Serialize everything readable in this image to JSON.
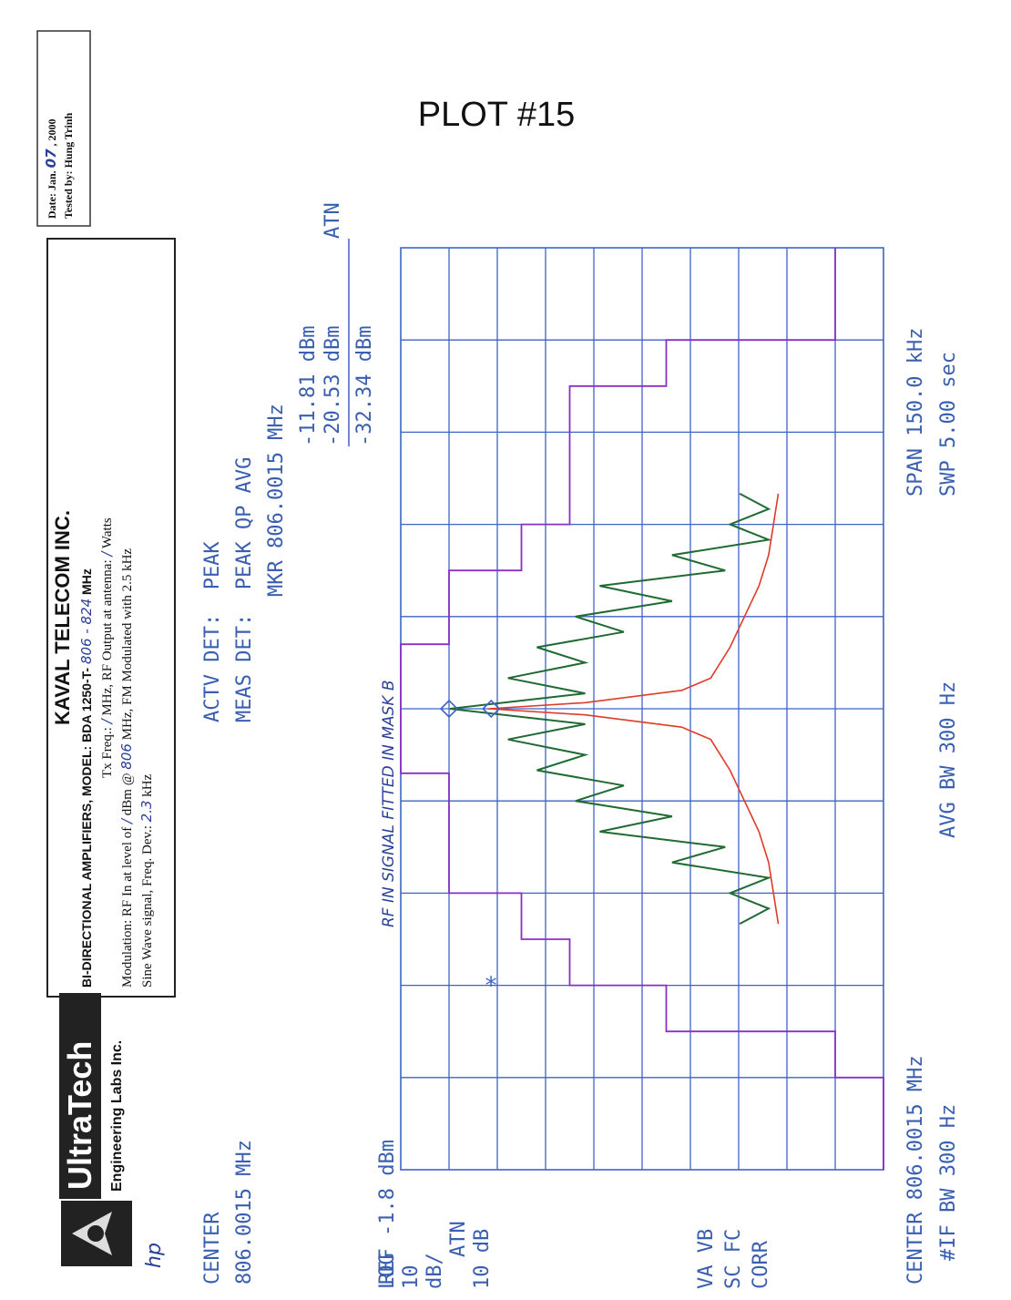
{
  "plot_title": "PLOT #15",
  "test_info": {
    "date_label": "Date: Jan.",
    "date_day": "07",
    "date_year": ", 2000",
    "tested_by": "Tested by: Hung Trinh"
  },
  "lab": {
    "name": "UltraTech",
    "subtitle": "Engineering Labs Inc.",
    "logo_icon": "ultratech-logo-icon"
  },
  "header": {
    "company": "KAVAL TELECOM INC.",
    "model_prefix": "BI-DIRECTIONAL AMPLIFIERS, MODEL: BDA 1250-T-",
    "model_freq": "806 - 824",
    "model_unit": "MHz",
    "tx_prefix": "Tx Freq.:",
    "tx_value": "/",
    "tx_mid": "MHz, RF Output at antenna:",
    "tx_watts": "/",
    "tx_unit": "Watts",
    "mod_prefix": "Modulation: RF In at level of",
    "mod_level": "/",
    "mod_mid": "dBm @",
    "mod_freq": "806",
    "mod_suffix": "MHz, FM Modulated with 2.5 kHz",
    "sine_prefix": "Sine Wave signal, Freq. Dev.:",
    "sine_dev": "2.3",
    "sine_unit": "kHz"
  },
  "annotation": "RF IN SIGNAL FITTED IN MASK B",
  "instrument_mark": "hp",
  "readout": {
    "center_label": "CENTER",
    "center_value": "806.0015 MHz",
    "actv_det": "ACTV DET:  PEAK",
    "meas_det": "MEAS DET:  PEAK QP AVG",
    "mkr": "MKR 806.0015 MHz",
    "val1": "-11.81 dBm",
    "val2": "-20.53 dBm",
    "atn": "ATN",
    "val3": "-32.34 dBm",
    "ref": "REF -1.8 dBm",
    "log": "LOG",
    "db_per_div_1": "10",
    "db_per_div_2": "dB/",
    "atn_label": "ATN",
    "atn_value": "10 dB",
    "va_vb": "VA VB",
    "sc_fc": "SC FC",
    "corr": "CORR",
    "footer_center": "CENTER 806.0015 MHz",
    "footer_ifbw": "#IF BW 300 Hz",
    "footer_avgbw": "AVG BW 300 Hz",
    "footer_span": "SPAN 150.0 kHz",
    "footer_swp": "SWP 5.00 sec"
  },
  "colors": {
    "grid": "#3e63c7",
    "mask": "#8a2fc6",
    "trace_peak": "#1f6b33",
    "trace_avg": "#e03a2a",
    "marker": "#3e63c7"
  },
  "chart_data": {
    "type": "line",
    "title": "PLOT #15",
    "x_unit": "kHz offset from center 806.0015 MHz",
    "xlim": [
      -75,
      75
    ],
    "ylim": [
      -101.8,
      -1.8
    ],
    "ylabel": "dBm",
    "grid": true,
    "series": [
      {
        "name": "mask",
        "x": [
          -75,
          -60,
          -60,
          -52.5,
          -52.5,
          -45,
          -45,
          -37.5,
          -37.5,
          -30,
          -30,
          -10.5,
          -10.5,
          10.5,
          10.5,
          22.5,
          22.5,
          30,
          30,
          52.5,
          52.5,
          60,
          60,
          75
        ],
        "values": [
          -101.8,
          -101.8,
          -91.8,
          -91.8,
          -56.8,
          -56.8,
          -36.8,
          -36.8,
          -26.8,
          -26.8,
          -11.8,
          -11.8,
          -1.8,
          -1.8,
          -11.8,
          -11.8,
          -26.8,
          -26.8,
          -36.8,
          -36.8,
          -56.8,
          -56.8,
          -91.8,
          -91.8
        ]
      },
      {
        "name": "peak trace",
        "x": [
          -35,
          -32.5,
          -30,
          -27.5,
          -25,
          -22.5,
          -20,
          -17.5,
          -15,
          -12.5,
          -10,
          -7.5,
          -5,
          -2.5,
          0,
          2.5,
          5,
          7.5,
          10,
          12.5,
          15,
          17.5,
          20,
          22.5,
          25,
          27.5,
          30,
          32.5,
          35
        ],
        "values": [
          -72,
          -78,
          -70,
          -78,
          -58,
          -69,
          -43,
          -58,
          -38,
          -48,
          -30,
          -40,
          -24,
          -40,
          -12,
          -40,
          -24,
          -40,
          -30,
          -48,
          -38,
          -58,
          -43,
          -69,
          -58,
          -78,
          -70,
          -78,
          -72
        ]
      },
      {
        "name": "average trace",
        "x": [
          -35,
          -30,
          -25,
          -20,
          -15,
          -10,
          -5,
          -3,
          -1,
          0,
          1,
          3,
          5,
          10,
          15,
          20,
          25,
          30,
          35
        ],
        "values": [
          -80,
          -79,
          -78,
          -76,
          -73,
          -70,
          -66,
          -60,
          -40,
          -20,
          -40,
          -60,
          -66,
          -70,
          -73,
          -76,
          -78,
          -79,
          -80
        ]
      }
    ],
    "markers": [
      {
        "x": 0,
        "y": -11.81,
        "symbol": "diamond"
      },
      {
        "x": 0,
        "y": -20.53,
        "symbol": "diamond"
      },
      {
        "x": -45,
        "y": -20.53,
        "symbol": "asterisk"
      }
    ]
  }
}
